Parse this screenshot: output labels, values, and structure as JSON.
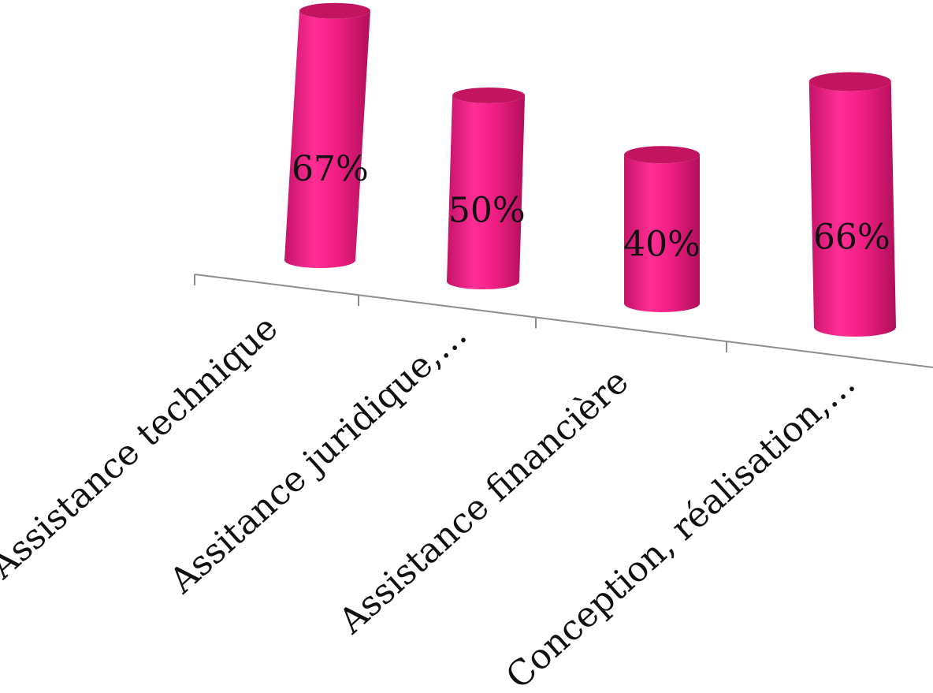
{
  "chart_data": {
    "type": "bar",
    "style": "3d-cylinder",
    "categories": [
      "Assistance technique",
      "Assitance juridique,…",
      "Assistance financière",
      "Conception, réalisation,…"
    ],
    "values": [
      67,
      50,
      40,
      66
    ],
    "data_labels": [
      "67%",
      "50%",
      "40%",
      "66%"
    ],
    "title": "",
    "xlabel": "",
    "ylabel": "",
    "ylim": [
      0,
      100
    ],
    "grid": false,
    "legend": "none",
    "colors": {
      "bar": "#e8197c",
      "bar_light": "#ff2e95",
      "bar_dark": "#b3105c",
      "bar_top": "#c2145f",
      "axis": "#8c8c8c"
    }
  }
}
